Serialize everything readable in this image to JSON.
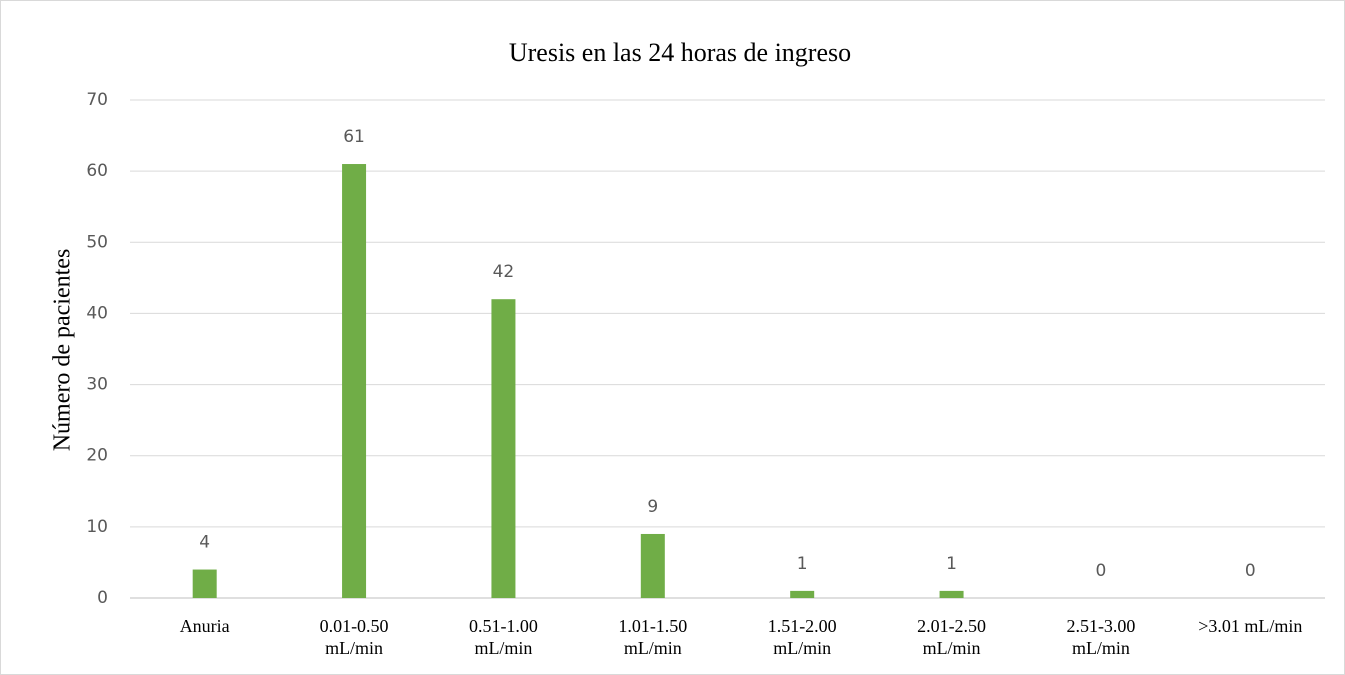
{
  "chart_data": {
    "type": "bar",
    "title": "Uresis en las 24 horas de ingreso",
    "y_label": "Número de pacientes",
    "categories": [
      "Anuria",
      "0.01-0.50 mL/min",
      "0.51-1.00 mL/min",
      "1.01-1.50 mL/min",
      "1.51-2.00 mL/min",
      "2.01-2.50 mL/min",
      "2.51-3.00 mL/min",
      ">3.01 mL/min"
    ],
    "values": [
      4,
      61,
      42,
      9,
      1,
      1,
      0,
      0
    ],
    "color": "#70ad47",
    "ylim": [
      0,
      70
    ],
    "yticks": [
      0,
      10,
      20,
      30,
      40,
      50,
      60,
      70
    ],
    "grid": true
  }
}
